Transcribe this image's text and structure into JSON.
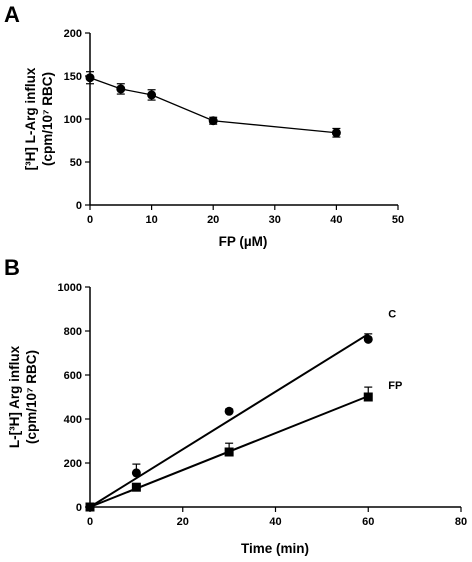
{
  "chart_data": [
    {
      "panel": "A",
      "type": "line",
      "x": [
        0,
        5,
        10,
        20,
        40
      ],
      "series": [
        {
          "values": [
            148,
            135,
            128,
            98,
            84
          ],
          "errors": [
            7,
            6,
            6,
            4,
            5
          ],
          "marker": "circle"
        }
      ],
      "xlabel": "FP (µM)",
      "ylabel": [
        "[³H] L-Arg influx",
        "(cpm/10⁷ RBC)"
      ],
      "xlim": [
        0,
        50
      ],
      "ylim": [
        0,
        200
      ],
      "xticks": [
        "0",
        "10",
        "20",
        "30",
        "40",
        "50"
      ],
      "yticks": [
        "0",
        "50",
        "100",
        "150",
        "200"
      ],
      "grid": false
    },
    {
      "panel": "B",
      "type": "scatter",
      "x": [
        0,
        10,
        30,
        60
      ],
      "series": [
        {
          "name": "C",
          "values": [
            0,
            155,
            435,
            762
          ],
          "errors": [
            0,
            40,
            10,
            25
          ],
          "marker": "circle",
          "fit": [
            0,
            13.1
          ]
        },
        {
          "name": "FP",
          "values": [
            0,
            90,
            250,
            500
          ],
          "errors": [
            0,
            10,
            40,
            45
          ],
          "marker": "square",
          "fit": [
            0,
            8.4
          ]
        }
      ],
      "xlabel": "Time (min)",
      "ylabel": [
        "L-[³H] Arg influx",
        "(cpm/10⁷ RBC)"
      ],
      "xlim": [
        0,
        80
      ],
      "ylim": [
        0,
        1000
      ],
      "xticks": [
        "0",
        "20",
        "40",
        "60",
        "80"
      ],
      "yticks": [
        "0",
        "200",
        "400",
        "600",
        "800",
        "1000"
      ],
      "grid": false
    }
  ]
}
